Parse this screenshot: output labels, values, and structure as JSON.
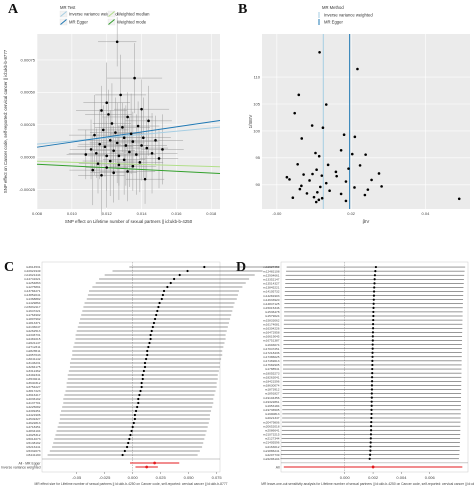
{
  "panels": {
    "a": {
      "letter": "A",
      "chart_data": {
        "type": "scatter",
        "xlabel": "SNP effect on Lifetime number of sexual partners || id:ukb-b-4250",
        "ylabel": "SNP effect on Cancer code, self-reported: cervical cancer || id:ukb-b-8777",
        "xlim": [
          0.008,
          0.0185
        ],
        "ylim": [
          -0.0004,
          0.00095
        ],
        "xticks": [
          "0.008",
          "0.010",
          "0.012",
          "0.014",
          "0.016",
          "0.018"
        ],
        "xtick_values": [
          0.008,
          0.01,
          0.012,
          0.014,
          0.016,
          0.018
        ],
        "yticks": [
          "-0.00025",
          "0.00000",
          "0.00025",
          "0.00050",
          "0.00075"
        ],
        "ytick_values": [
          -0.00025,
          0,
          0.00025,
          0.0005,
          0.00075
        ],
        "legend": {
          "title": "MR Test",
          "placement": "top",
          "entries": [
            {
              "label": "Inverse variance weighted",
              "color": "#a6cee3"
            },
            {
              "label": "Weighted median",
              "color": "#b2df8a"
            },
            {
              "label": "MR Egger",
              "color": "#1f78b4"
            },
            {
              "label": "Weighted mode",
              "color": "#33a02c"
            }
          ]
        },
        "points": [
          [
            0.0108,
            2e-05
          ],
          [
            0.0111,
            6e-05
          ],
          [
            0.0112,
            -0.0001
          ],
          [
            0.0113,
            0.00017
          ],
          [
            0.0114,
            3e-05
          ],
          [
            0.0115,
            -5e-05
          ],
          [
            0.0116,
            0.0001
          ],
          [
            0.0117,
            -0.00014
          ],
          [
            0.0118,
            0.00021
          ],
          [
            0.0119,
            8e-05
          ],
          [
            0.012,
            1e-05
          ],
          [
            0.012,
            -8e-05
          ],
          [
            0.0121,
            0.00033
          ],
          [
            0.0122,
            0.00013
          ],
          [
            0.0122,
            -3e-05
          ],
          [
            0.0123,
            0.00026
          ],
          [
            0.0124,
            5e-05
          ],
          [
            0.0124,
            -0.00012
          ],
          [
            0.0125,
            0.00019
          ],
          [
            0.0126,
            0.00011
          ],
          [
            0.0126,
            0.00089
          ],
          [
            0.0127,
            1e-05
          ],
          [
            0.0127,
            -6e-05
          ],
          [
            0.0128,
            0.00048
          ],
          [
            0.0129,
            0.00023
          ],
          [
            0.013,
            0.00015
          ],
          [
            0.013,
            -2e-05
          ],
          [
            0.0131,
            9e-05
          ],
          [
            0.0132,
            0.00031
          ],
          [
            0.0132,
            -0.00011
          ],
          [
            0.0133,
            4e-05
          ],
          [
            0.0134,
            0.00018
          ],
          [
            0.0135,
            -7e-05
          ],
          [
            0.0135,
            0.00012
          ],
          [
            0.0136,
            0.00061
          ],
          [
            0.0137,
            2e-05
          ],
          [
            0.0138,
            0.00024
          ],
          [
            0.0139,
            -4e-05
          ],
          [
            0.014,
            9e-05
          ],
          [
            0.0141,
            0.00015
          ],
          [
            0.0142,
            -0.00017
          ],
          [
            0.0143,
            7e-05
          ],
          [
            0.0144,
            0.00028
          ],
          [
            0.0146,
            3e-05
          ],
          [
            0.0148,
            0.00013
          ],
          [
            0.015,
            -1e-05
          ],
          [
            0.0152,
            6e-05
          ],
          [
            0.012,
            0.00042
          ],
          [
            0.0117,
            0.00036
          ],
          [
            0.014,
            0.00037
          ]
        ],
        "lines": [
          {
            "name": "Inverse variance weighted",
            "slope": 0.0125,
            "intercept": 0,
            "color": "#a6cee3"
          },
          {
            "name": "MR Egger",
            "slope": 0.0196,
            "intercept": -8e-05,
            "color": "#1f78b4"
          },
          {
            "name": "Weighted median",
            "slope": -0.004,
            "intercept": 0,
            "color": "#b2df8a"
          },
          {
            "name": "Weighted mode",
            "slope": -0.0068,
            "intercept": 0,
            "color": "#33a02c"
          }
        ]
      }
    },
    "b": {
      "letter": "B",
      "chart_data": {
        "type": "scatter",
        "xlabel": "βIV",
        "ylabel": "1/SEIV",
        "xlim": [
          -0.004,
          0.052
        ],
        "ylim": [
          85.5,
          118
        ],
        "xticks": [
          "-0.00",
          "0.02",
          "0.04"
        ],
        "xtick_values": [
          0,
          0.02,
          0.04
        ],
        "yticks": [
          "90",
          "95",
          "100",
          "105",
          "110"
        ],
        "ytick_values": [
          90,
          95,
          100,
          105,
          110
        ],
        "legend": {
          "title": "MR Method",
          "placement": "top",
          "entries": [
            {
              "label": "Inverse variance weighted",
              "color": "#a6cee3"
            },
            {
              "label": "MR Egger",
              "color": "#1f78b4"
            }
          ]
        },
        "vlines": [
          {
            "name": "Inverse variance weighted",
            "x": 0.0125,
            "color": "#a6cee3"
          },
          {
            "name": "MR Egger",
            "x": 0.0196,
            "color": "#1f78b4"
          }
        ],
        "points": [
          [
            0.0115,
            114.6
          ],
          [
            0.0217,
            111.5
          ],
          [
            0.0059,
            106.7
          ],
          [
            0.0133,
            104.9
          ],
          [
            0.0048,
            103.3
          ],
          [
            0.0095,
            101.0
          ],
          [
            0.0124,
            100.6
          ],
          [
            0.0181,
            99.3
          ],
          [
            0.021,
            98.9
          ],
          [
            0.0067,
            98.6
          ],
          [
            0.0173,
            96.4
          ],
          [
            0.0104,
            95.9
          ],
          [
            0.0203,
            95.7
          ],
          [
            0.0239,
            95.6
          ],
          [
            0.0114,
            95.3
          ],
          [
            0.0056,
            93.8
          ],
          [
            0.0138,
            93.7
          ],
          [
            0.0224,
            93.6
          ],
          [
            0.0193,
            93.0
          ],
          [
            0.0107,
            92.8
          ],
          [
            0.0159,
            92.4
          ],
          [
            0.0275,
            92.1
          ],
          [
            0.0096,
            92.0
          ],
          [
            0.0072,
            91.9
          ],
          [
            0.0121,
            91.7
          ],
          [
            0.0161,
            91.6
          ],
          [
            0.0027,
            91.4
          ],
          [
            0.0034,
            91.0
          ],
          [
            0.0255,
            90.9
          ],
          [
            0.0088,
            90.8
          ],
          [
            0.0186,
            90.6
          ],
          [
            0.0133,
            90.3
          ],
          [
            0.0066,
            89.8
          ],
          [
            0.0282,
            89.7
          ],
          [
            0.0117,
            89.6
          ],
          [
            0.0209,
            89.5
          ],
          [
            0.0062,
            89.2
          ],
          [
            0.0245,
            89.1
          ],
          [
            0.0142,
            88.9
          ],
          [
            0.0109,
            88.6
          ],
          [
            0.0081,
            88.4
          ],
          [
            0.0173,
            88.3
          ],
          [
            0.0237,
            88.1
          ],
          [
            0.01,
            87.7
          ],
          [
            0.0043,
            87.6
          ],
          [
            0.0122,
            87.5
          ],
          [
            0.0113,
            87.2
          ],
          [
            0.0186,
            87.0
          ],
          [
            0.0491,
            87.4
          ],
          [
            0.0106,
            86.8
          ]
        ]
      }
    },
    "c": {
      "letter": "C",
      "chart_data": {
        "type": "forest",
        "xlabel": "MR effect size for Lifetime number of sexual partners || id:ukb-b-4250 on Cancer code, self-reported: cervical cancer || id:ukb-b-8777",
        "xlim": [
          -0.081,
          0.078
        ],
        "xticks": [
          "-0.05",
          "-0.025",
          "0.000",
          "0.025",
          "0.050",
          "0.075"
        ],
        "xtick_values": [
          -0.05,
          -0.025,
          0,
          0.025,
          0.05,
          0.075
        ],
        "snp_labels": [
          "rs4614531",
          "rs10921949",
          "rs11621444",
          "rs12741621",
          "rs1254863",
          "rs1275891",
          "rs13784271",
          "rs13852041",
          "rs1368882",
          "rs1429864",
          "rs15062117",
          "rs1647221",
          "rs1764902",
          "rs1807992",
          "rs1813371",
          "rs2136047",
          "rs2262513",
          "rs2346731",
          "rs2481015",
          "rs2621147",
          "rs2712311",
          "rs2826511",
          "rs2957043",
          "rs3041142",
          "rs3146231",
          "rs3284175",
          "rs3312462",
          "rs3492341",
          "rs3530211",
          "rs3640312",
          "rs3754227",
          "rs3817223",
          "rs3916417",
          "rs4036192",
          "rs4137701",
          "rs4225082",
          "rs4309451",
          "rs4421906",
          "rs4549327",
          "rs4622813",
          "rs4718451",
          "rs4834104",
          "rs4925312",
          "rs5014073",
          "rs5138192",
          "rs5216441",
          "rs5332073",
          "rs5441190"
        ],
        "snp_estimates": [
          0.064,
          0.049,
          0.042,
          0.037,
          0.034,
          0.031,
          0.028,
          0.027,
          0.026,
          0.024,
          0.023,
          0.022,
          0.021,
          0.02,
          0.019,
          0.018,
          0.017,
          0.016,
          0.016,
          0.015,
          0.014,
          0.013,
          0.013,
          0.012,
          0.011,
          0.011,
          0.01,
          0.009,
          0.009,
          0.008,
          0.008,
          0.007,
          0.006,
          0.005,
          0.005,
          0.004,
          0.003,
          0.002,
          0.002,
          0.001,
          0.0,
          -0.001,
          -0.002,
          -0.003,
          -0.004,
          -0.005,
          -0.007,
          -0.009
        ],
        "half_width": 0.067,
        "summary_labels": [
          "All - MR Egger",
          "All - Inverse variance weighted"
        ],
        "summary_estimates": [
          0.0196,
          0.0125
        ],
        "summary_halfwidth": [
          0.022,
          0.01
        ],
        "summary_color": "#e31a1c"
      }
    },
    "d": {
      "letter": "D",
      "chart_data": {
        "type": "forest",
        "xlabel": "MR leave-one-out sensitivity analysis for Lifetime number of sexual partners || id:ukb-b-4250 on Cancer code, self-reported: cervical cancer || id:ukb-b-8777",
        "xlim": [
          -0.0045,
          0.0087
        ],
        "xticks": [
          "0.000",
          "0.002",
          "0.004",
          "0.006"
        ],
        "xtick_values": [
          0,
          0.002,
          0.004,
          0.006
        ],
        "snp_labels": [
          "rs11627459",
          "rs12483108",
          "rs12904661",
          "rs13352147",
          "rs13514327",
          "rs13845221",
          "rs14105732",
          "rs14281903",
          "rs14633920",
          "rs14847125",
          "rs15015346",
          "rs1536478",
          "rs1579024",
          "rs15833062",
          "rs16174081",
          "rs16304226",
          "rs16472958",
          "rs16619045",
          "rs16751387",
          "rs1693074",
          "rs17047251",
          "rs17218436",
          "rs17386025",
          "rs17469613",
          "rs17682905",
          "rs1788541",
          "rs18055273",
          "rs18263041",
          "rs18421596",
          "rs18630074",
          "rs1873912",
          "rs1891827",
          "rs19104356",
          "rs19322861",
          "rs1953184",
          "rs19736505",
          "rs1990813",
          "rs2021347",
          "rs20479806",
          "rs20652018",
          "rs2086641",
          "rs21073215",
          "rs2127344",
          "rs21405596",
          "rs2163012",
          "rs21886241",
          "rs2207739",
          "rs22296104"
        ],
        "snp_estimates": [
          0.0022,
          0.00216,
          0.00213,
          0.00211,
          0.0021,
          0.00208,
          0.00207,
          0.00206,
          0.00205,
          0.00204,
          0.00203,
          0.00202,
          0.00202,
          0.00201,
          0.002,
          0.002,
          0.00199,
          0.00198,
          0.00198,
          0.00197,
          0.00197,
          0.00196,
          0.00196,
          0.00195,
          0.00195,
          0.00194,
          0.00194,
          0.00193,
          0.00193,
          0.00192,
          0.00192,
          0.00191,
          0.00191,
          0.0019,
          0.0019,
          0.00189,
          0.00189,
          0.00188,
          0.00187,
          0.00186,
          0.00186,
          0.00185,
          0.00184,
          0.00183,
          0.00182,
          0.00181,
          0.00179,
          0.00176
        ],
        "half_width": 0.0063,
        "summary_label": "All",
        "summary_estimate": 0.002,
        "summary_halfwidth": 0.0063,
        "summary_color": "#e31a1c"
      }
    }
  }
}
